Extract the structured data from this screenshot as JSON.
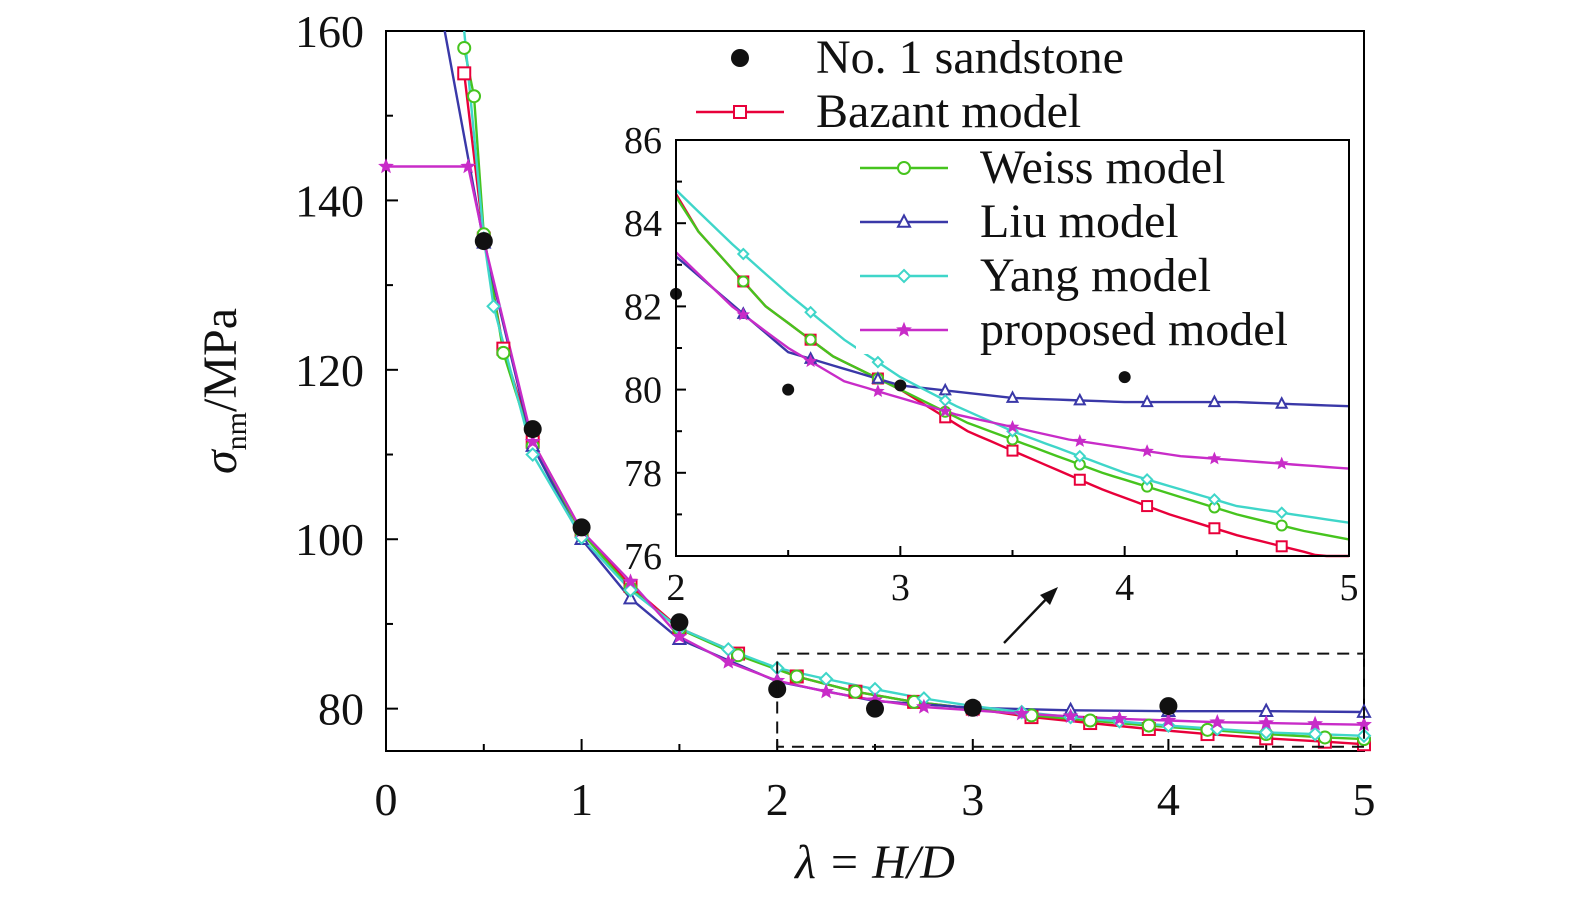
{
  "chart_data": {
    "type": "line",
    "xlabel": "λ = H/D",
    "ylabel": {
      "symbol": "σ",
      "subscript": "nm",
      "unit": "/MPa"
    },
    "main": {
      "xlim": [
        0,
        5
      ],
      "ylim": [
        75,
        160
      ],
      "xticks": [
        "0",
        "1",
        "2",
        "3",
        "4",
        "5"
      ],
      "yticks": [
        "80",
        "100",
        "120",
        "140",
        "160"
      ],
      "ytick_values": [
        80,
        100,
        120,
        140,
        160
      ]
    },
    "inset": {
      "xlim": [
        2,
        5
      ],
      "ylim": [
        76,
        86
      ],
      "xticks": [
        "2",
        "3",
        "4",
        "5"
      ],
      "yticks": [
        "76",
        "78",
        "80",
        "82",
        "84",
        "86"
      ],
      "ytick_values": [
        76,
        78,
        80,
        82,
        84,
        86
      ],
      "zoom_box": {
        "x": [
          2,
          5
        ],
        "y": [
          75.5,
          86.5
        ]
      }
    },
    "observed": {
      "name": "No. 1 sandstone",
      "color": "#111111",
      "x": [
        0.5,
        0.75,
        1.0,
        1.5,
        2.0,
        2.5,
        3.0,
        4.0
      ],
      "y": [
        135.2,
        113.0,
        101.4,
        90.2,
        82.3,
        80.0,
        80.1,
        80.3
      ]
    },
    "series": [
      {
        "name": "Bazant model",
        "color": "#e8003a",
        "marker": "square",
        "x": [
          0.4,
          0.5,
          0.6,
          0.75,
          1.0,
          1.25,
          1.5,
          1.8,
          2.1,
          2.4,
          2.7,
          3.0,
          3.3,
          3.6,
          3.9,
          4.2,
          4.5,
          4.8,
          5.0
        ],
        "y": [
          155.0,
          135.5,
          122.5,
          111.5,
          101.0,
          94.5,
          89.5,
          86.5,
          83.8,
          82.0,
          80.8,
          80.0,
          79.0,
          78.3,
          77.6,
          77.0,
          76.5,
          76.1,
          75.8
        ]
      },
      {
        "name": "Weiss model",
        "color": "#46c41e",
        "marker": "circle",
        "x": [
          0.4,
          0.45,
          0.5,
          0.6,
          0.75,
          1.0,
          1.25,
          1.5,
          1.8,
          2.1,
          2.4,
          2.7,
          3.0,
          3.3,
          3.6,
          3.9,
          4.2,
          4.5,
          4.8,
          5.0
        ],
        "y": [
          158.0,
          152.3,
          136.0,
          122.0,
          111.0,
          100.8,
          94.2,
          89.4,
          86.3,
          83.8,
          82.0,
          80.8,
          80.0,
          79.2,
          78.6,
          78.0,
          77.5,
          77.0,
          76.6,
          76.4
        ]
      },
      {
        "name": "Liu model",
        "color": "#3a38a8",
        "marker": "triangle",
        "x": [
          0.3,
          0.5,
          0.75,
          1.0,
          1.25,
          1.5,
          2.0,
          2.5,
          3.0,
          3.5,
          4.0,
          4.5,
          5.0
        ],
        "y": [
          160.0,
          135.0,
          111.0,
          100.0,
          93.0,
          88.2,
          83.2,
          80.9,
          80.1,
          79.8,
          79.7,
          79.7,
          79.6
        ]
      },
      {
        "name": "Yang model",
        "color": "#3fd6c9",
        "marker": "diamond",
        "x": [
          0.4,
          0.5,
          0.55,
          0.75,
          1.0,
          1.25,
          1.5,
          1.75,
          2.0,
          2.25,
          2.5,
          2.75,
          3.0,
          3.25,
          3.5,
          3.75,
          4.0,
          4.25,
          4.5,
          4.75,
          5.0
        ],
        "y": [
          160.0,
          135.5,
          127.5,
          110.0,
          100.2,
          94.0,
          89.5,
          87.0,
          84.8,
          83.5,
          82.3,
          81.2,
          80.3,
          79.6,
          79.0,
          78.5,
          78.0,
          77.6,
          77.2,
          77.0,
          76.8
        ]
      },
      {
        "name": "proposed model",
        "color": "#c82cc8",
        "marker": "star",
        "x": [
          0.0,
          0.42,
          0.5,
          0.75,
          1.0,
          1.25,
          1.5,
          1.75,
          2.0,
          2.25,
          2.5,
          2.75,
          3.0,
          3.25,
          3.5,
          3.75,
          4.0,
          4.25,
          4.5,
          4.75,
          5.0
        ],
        "y": [
          144.0,
          144.0,
          135.3,
          111.5,
          101.0,
          95.0,
          88.5,
          85.5,
          83.3,
          82.0,
          81.0,
          80.2,
          79.8,
          79.4,
          79.1,
          78.8,
          78.6,
          78.4,
          78.3,
          78.2,
          78.1
        ]
      }
    ],
    "legend_placement": "top-right",
    "grid": false
  }
}
